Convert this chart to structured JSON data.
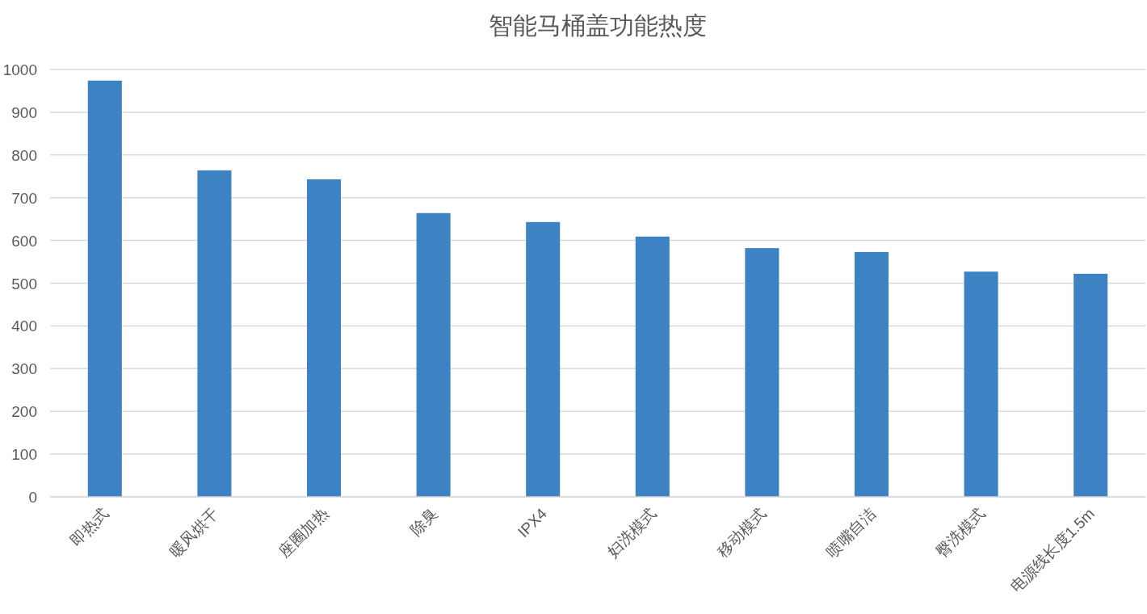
{
  "chart_data": {
    "type": "bar",
    "title": "智能马桶盖功能热度",
    "categories": [
      "即热式",
      "暖风烘干",
      "座圈加热",
      "除臭",
      "IPX4",
      "妇洗模式",
      "移动模式",
      "喷嘴自洁",
      "臀洗模式",
      "电源线长度1.5m"
    ],
    "values": [
      974,
      764,
      743,
      664,
      643,
      609,
      582,
      573,
      527,
      522
    ],
    "color": "#3d82c3",
    "ylim": [
      0,
      1000
    ],
    "yticks": [
      0,
      100,
      200,
      300,
      400,
      500,
      600,
      700,
      800,
      900,
      1000
    ],
    "grid": "y"
  }
}
